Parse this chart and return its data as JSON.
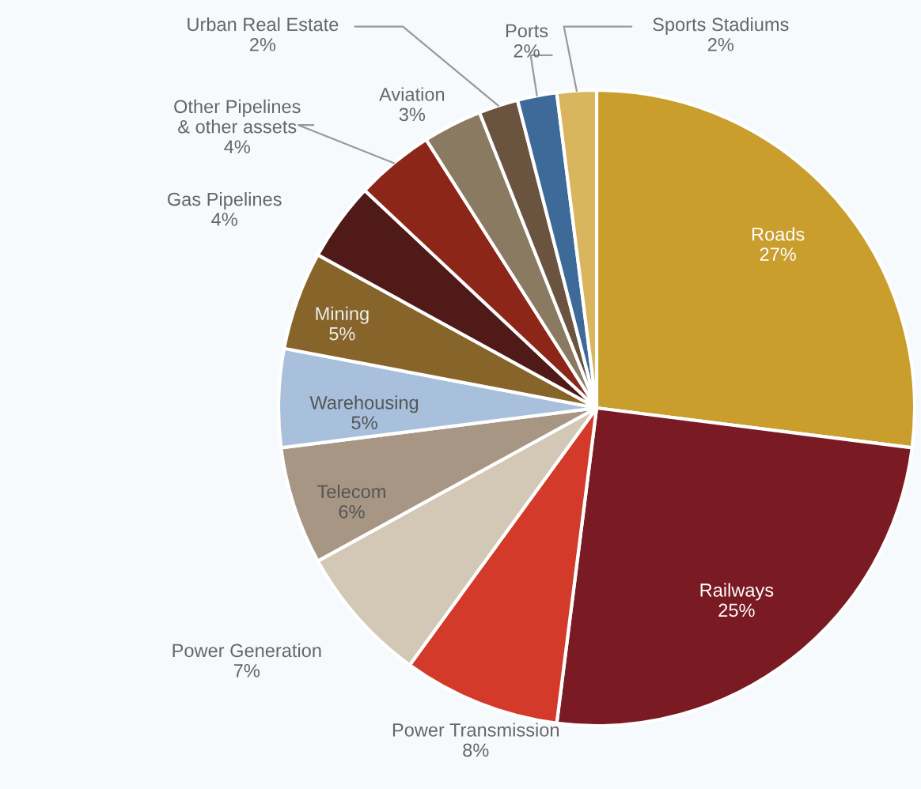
{
  "chart_data": {
    "type": "pie",
    "categories": [
      "Roads",
      "Railways",
      "Power Transmission",
      "Power Generation",
      "Telecom",
      "Warehousing",
      "Mining",
      "Gas Pipelines",
      "Other Pipelines & other assets",
      "Aviation",
      "Urban Real Estate",
      "Ports",
      "Sports Stadiums"
    ],
    "values": [
      27,
      25,
      8,
      7,
      6,
      5,
      5,
      4,
      4,
      3,
      2,
      2,
      2
    ],
    "colors": [
      "#c99e2c",
      "#7a1a22",
      "#d33a2a",
      "#d3c8b6",
      "#a89684",
      "#a8c0dc",
      "#87652a",
      "#4f1a18",
      "#8c2619",
      "#8a7a62",
      "#6a533f",
      "#3d6a98",
      "#d9b55e"
    ],
    "value_labels": [
      "27%",
      "25%",
      "8%",
      "7%",
      "6%",
      "5%",
      "5%",
      "4%",
      "4%",
      "3%",
      "2%",
      "2%",
      "2%"
    ]
  }
}
